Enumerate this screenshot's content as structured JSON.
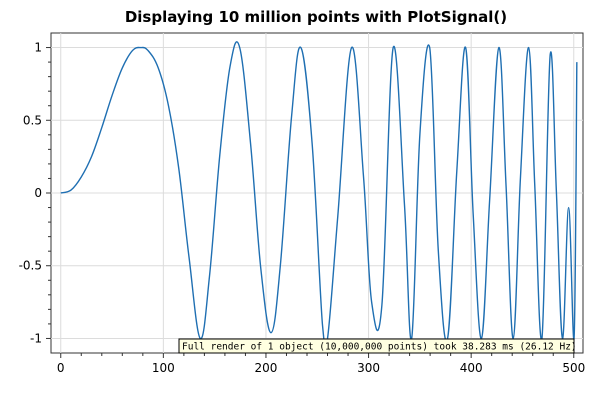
{
  "chart_data": {
    "type": "line",
    "title": "Displaying 10 million points with PlotSignal()",
    "xlabel": "",
    "ylabel": "",
    "xlim": [
      -9.5,
      509
    ],
    "ylim": [
      -1.1,
      1.1
    ],
    "x_ticks": [
      0,
      100,
      200,
      300,
      400,
      500
    ],
    "x_tick_labels": [
      "0",
      "100",
      "200",
      "300",
      "400",
      "500"
    ],
    "y_ticks": [
      1,
      0.5,
      0,
      -0.5,
      -1
    ],
    "y_tick_labels": [
      "1",
      "0.5",
      "0",
      "-0.5",
      "-1"
    ],
    "grid": true,
    "series": [
      {
        "color": "#1f6fb2",
        "x": [
          0,
          10,
          20,
          30,
          40,
          50,
          60,
          70,
          78,
          85,
          95,
          105,
          115,
          125,
          136,
          145,
          155,
          165,
          174.4,
          185,
          195,
          205,
          214,
          225,
          234,
          245,
          255,
          260,
          270,
          283.5,
          295,
          303,
          313,
          324,
          335,
          342,
          350,
          359.6,
          368,
          377,
          386,
          394.6,
          402,
          410,
          418,
          427,
          434,
          441,
          448,
          456,
          462,
          469,
          477,
          483,
          489,
          495,
          500.3,
          503
        ],
        "y": [
          0,
          0.02,
          0.11,
          0.25,
          0.45,
          0.67,
          0.86,
          0.98,
          1,
          0.98,
          0.86,
          0.6,
          0.17,
          -0.44,
          -1,
          -0.57,
          0.26,
          0.87,
          1,
          0.34,
          -0.52,
          -0.96,
          -0.5,
          0.53,
          1,
          0.34,
          -0.9,
          -1,
          -0.16,
          1,
          0.12,
          -0.75,
          -0.77,
          1,
          -0.08,
          -1,
          0.4,
          1,
          -0.4,
          -1,
          0.15,
          1,
          -0.15,
          -1,
          -0.05,
          1,
          0.05,
          -1,
          0.1,
          1,
          0.05,
          -1,
          0.95,
          0.02,
          -1,
          -0.1,
          -1,
          0.9
        ]
      }
    ],
    "annotation": "Full render of 1 object (10,000,000 points) took 38.283 ms (26.12 Hz)"
  }
}
